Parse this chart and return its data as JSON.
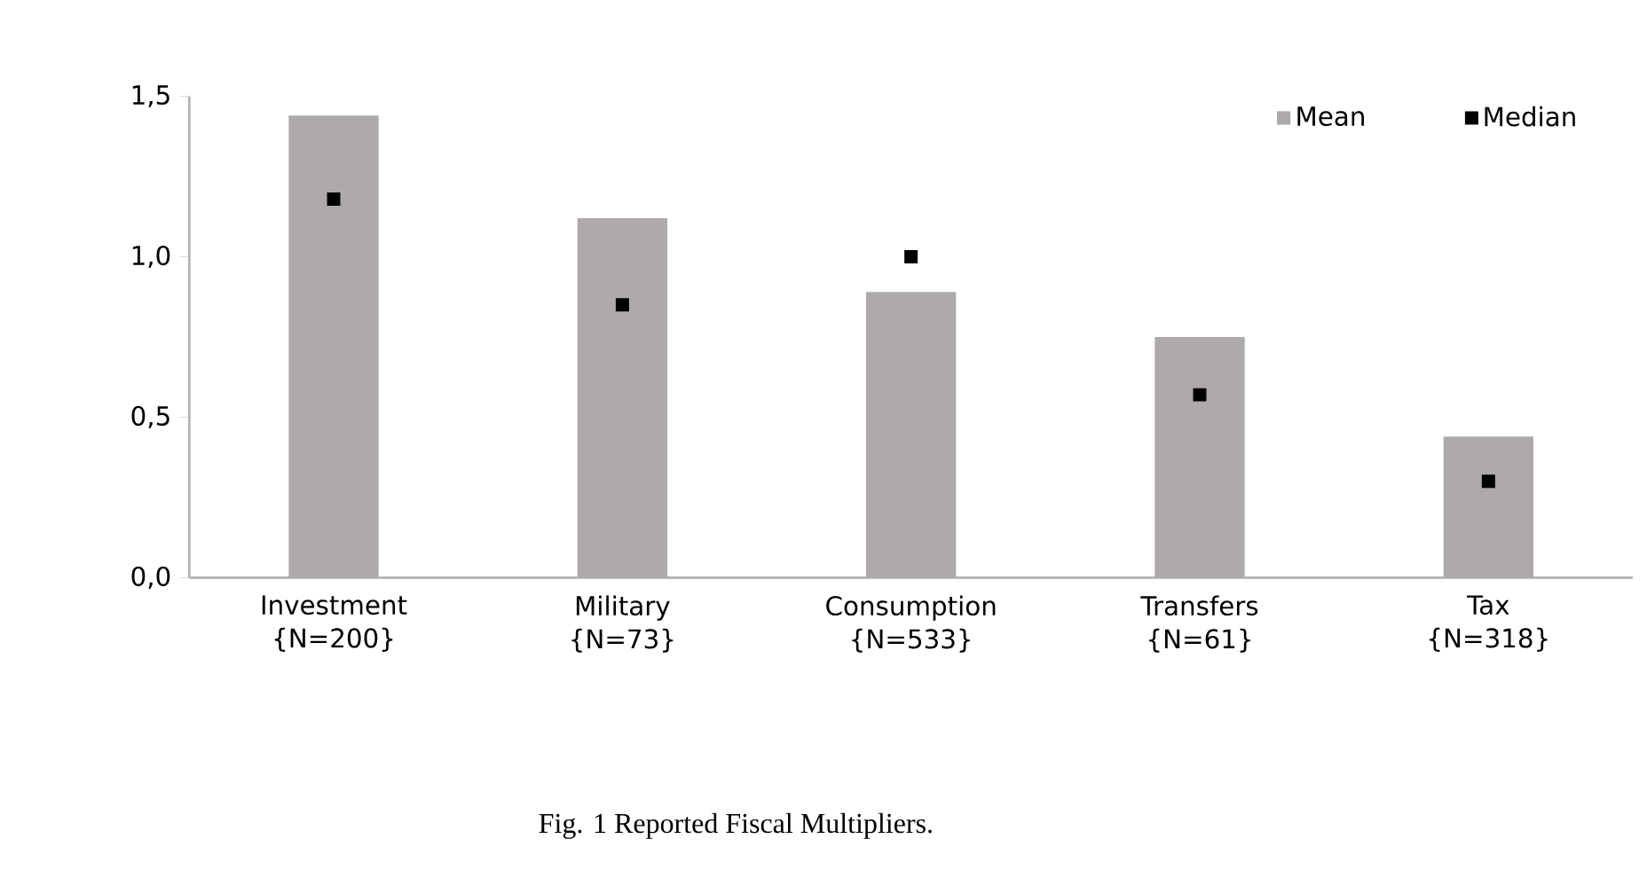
{
  "chart_data": {
    "type": "bar",
    "categories": [
      "Investment {N=200}",
      "Military {N=73}",
      "Consumption {N=533}",
      "Transfers {N=61}",
      "Tax {N=318}"
    ],
    "series": [
      {
        "name": "Mean",
        "color": "#aeaaa9",
        "values": [
          1.44,
          1.12,
          0.89,
          0.75,
          0.44
        ]
      },
      {
        "name": "Median",
        "type": "scatter",
        "color": "#000000",
        "marker": "square",
        "values": [
          1.18,
          0.85,
          1.0,
          0.57,
          0.3
        ]
      }
    ],
    "ylim": [
      0,
      1.5
    ],
    "yticks": [
      {
        "value": 0,
        "label": "0,0"
      },
      {
        "value": 0.5,
        "label": "0,5"
      },
      {
        "value": 1.0,
        "label": "1,0"
      },
      {
        "value": 1.5,
        "label": "1,5"
      }
    ],
    "legend": "top right",
    "grid": false,
    "annotations": [
      "Fig. 1 Reported Fiscal Multipliers."
    ]
  }
}
